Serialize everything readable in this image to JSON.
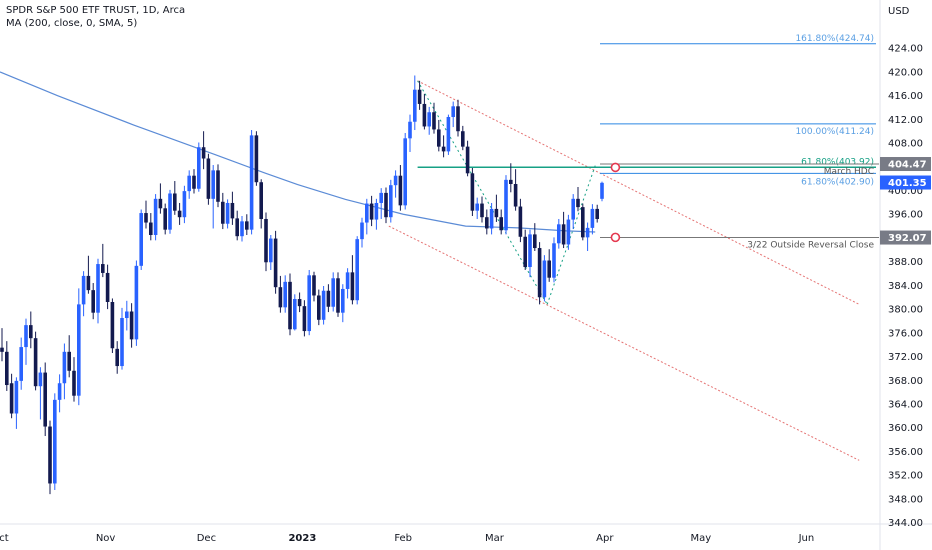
{
  "header": {
    "symbol_line": "SPDR S&P 500 ETF TRUST, 1D, Arca",
    "indicator_line": "MA (200, close, 0, SMA, 5)"
  },
  "colors": {
    "up": "#2962ff",
    "down": "#131a4f",
    "ma": "#5b8bd6",
    "fib": "#2b86e3",
    "fib_text": "#5a9fe3",
    "teal": "#16a085",
    "channel": "#e57373",
    "level": "#777777",
    "marker": "#e53950"
  },
  "chart_data": {
    "type": "candlestick",
    "currency_label": "USD",
    "y_axis": {
      "min": 344,
      "max": 428,
      "ticks": [
        424,
        420,
        416,
        412,
        408,
        404,
        400,
        396,
        392,
        388,
        384,
        380,
        376,
        372,
        368,
        364,
        360,
        356,
        352,
        348,
        344
      ],
      "tick_labels": [
        "424.00",
        "420.00",
        "416.00",
        "412.00",
        "408.00",
        "404.00",
        "400.00",
        "396.00",
        "392.00",
        "388.00",
        "384.00",
        "380.00",
        "376.00",
        "372.00",
        "368.00",
        "364.00",
        "360.00",
        "356.00",
        "352.00",
        "348.00",
        "344.00"
      ]
    },
    "x_axis": {
      "labels": [
        {
          "text": "Oct",
          "bar": 0,
          "bold": false
        },
        {
          "text": "Nov",
          "bar": 22,
          "bold": false
        },
        {
          "text": "Dec",
          "bar": 43,
          "bold": false
        },
        {
          "text": "2023",
          "bar": 63,
          "bold": true
        },
        {
          "text": "Feb",
          "bar": 84,
          "bold": false
        },
        {
          "text": "Mar",
          "bar": 103,
          "bold": false
        },
        {
          "text": "Apr",
          "bar": 126,
          "bold": false
        },
        {
          "text": "May",
          "bar": 146,
          "bold": false
        },
        {
          "text": "Jun",
          "bar": 168,
          "bold": false
        }
      ]
    },
    "bar_count": 180,
    "candles": [
      [
        373.5,
        376.8,
        371.2,
        372.8
      ],
      [
        372.8,
        374.6,
        366.2,
        367.2
      ],
      [
        367.5,
        369.1,
        361.6,
        362.4
      ],
      [
        362.4,
        368.5,
        359.8,
        367.9
      ],
      [
        367.9,
        375.2,
        366.4,
        373.6
      ],
      [
        373.6,
        378.4,
        370.6,
        377.3
      ],
      [
        377.3,
        379.6,
        373.4,
        375.1
      ],
      [
        375.1,
        376.2,
        366.3,
        367.0
      ],
      [
        367.0,
        370.2,
        361.4,
        369.3
      ],
      [
        369.3,
        371.0,
        358.6,
        360.2
      ],
      [
        360.2,
        361.2,
        348.8,
        350.6
      ],
      [
        350.6,
        365.8,
        349.5,
        364.7
      ],
      [
        364.7,
        369.0,
        362.6,
        367.5
      ],
      [
        367.5,
        374.2,
        364.8,
        372.8
      ],
      [
        372.8,
        375.6,
        368.5,
        369.6
      ],
      [
        369.6,
        371.9,
        364.4,
        365.4
      ],
      [
        365.4,
        383.5,
        363.8,
        380.8
      ],
      [
        380.8,
        386.4,
        378.8,
        385.6
      ],
      [
        385.6,
        389.0,
        382.6,
        383.2
      ],
      [
        383.2,
        384.4,
        378.3,
        379.4
      ],
      [
        379.4,
        388.5,
        377.6,
        387.6
      ],
      [
        387.6,
        391.0,
        385.4,
        386.1
      ],
      [
        386.1,
        387.5,
        380.0,
        381.2
      ],
      [
        381.2,
        381.8,
        372.6,
        373.4
      ],
      [
        373.3,
        374.6,
        369.1,
        370.4
      ],
      [
        370.4,
        380.2,
        369.8,
        378.5
      ],
      [
        378.5,
        381.4,
        376.4,
        379.6
      ],
      [
        379.6,
        381.0,
        373.5,
        374.9
      ],
      [
        374.9,
        388.2,
        373.8,
        387.3
      ],
      [
        387.3,
        396.8,
        386.6,
        396.2
      ],
      [
        396.2,
        398.3,
        393.6,
        394.6
      ],
      [
        394.6,
        396.2,
        391.6,
        392.5
      ],
      [
        392.5,
        399.4,
        391.6,
        398.6
      ],
      [
        398.6,
        401.2,
        396.1,
        397.0
      ],
      [
        397.0,
        397.8,
        392.6,
        393.4
      ],
      [
        393.4,
        400.1,
        392.7,
        399.5
      ],
      [
        399.5,
        401.6,
        395.9,
        396.6
      ],
      [
        396.6,
        397.9,
        394.2,
        395.5
      ],
      [
        395.5,
        400.8,
        394.5,
        399.9
      ],
      [
        399.9,
        403.4,
        398.6,
        402.5
      ],
      [
        402.5,
        403.6,
        399.5,
        400.3
      ],
      [
        400.3,
        408.1,
        399.8,
        407.3
      ],
      [
        407.3,
        410.0,
        403.6,
        405.4
      ],
      [
        405.4,
        406.2,
        397.6,
        398.6
      ],
      [
        398.6,
        404.3,
        393.6,
        403.4
      ],
      [
        403.4,
        404.4,
        397.2,
        398.1
      ],
      [
        398.1,
        399.6,
        393.5,
        394.4
      ],
      [
        394.4,
        398.5,
        393.6,
        397.9
      ],
      [
        397.9,
        399.8,
        394.2,
        395.3
      ],
      [
        395.3,
        396.6,
        391.6,
        392.3
      ],
      [
        392.3,
        395.7,
        391.4,
        394.8
      ],
      [
        394.8,
        396.0,
        392.5,
        393.4
      ],
      [
        393.4,
        410.2,
        392.6,
        409.3
      ],
      [
        409.3,
        410.0,
        400.8,
        401.4
      ],
      [
        401.4,
        401.9,
        393.6,
        395.2
      ],
      [
        395.2,
        396.3,
        386.4,
        387.9
      ],
      [
        387.9,
        392.5,
        386.6,
        391.9
      ],
      [
        391.9,
        393.2,
        382.6,
        383.7
      ],
      [
        383.7,
        385.6,
        379.4,
        380.3
      ],
      [
        380.3,
        385.7,
        379.4,
        384.6
      ],
      [
        384.6,
        386.0,
        375.6,
        376.6
      ],
      [
        376.6,
        382.5,
        376.4,
        381.7
      ],
      [
        381.7,
        382.8,
        379.5,
        380.5
      ],
      [
        380.5,
        381.5,
        375.4,
        376.3
      ],
      [
        376.3,
        386.6,
        375.6,
        385.7
      ],
      [
        385.7,
        386.3,
        381.3,
        382.3
      ],
      [
        382.3,
        383.3,
        377.3,
        378.2
      ],
      [
        378.2,
        383.9,
        377.4,
        383.1
      ],
      [
        383.1,
        384.2,
        379.5,
        380.4
      ],
      [
        380.4,
        386.2,
        379.6,
        385.2
      ],
      [
        385.2,
        386.2,
        378.7,
        379.4
      ],
      [
        379.4,
        384.2,
        377.8,
        383.4
      ],
      [
        383.4,
        386.9,
        381.8,
        386.2
      ],
      [
        386.2,
        389.1,
        380.8,
        381.5
      ],
      [
        381.5,
        392.3,
        380.8,
        391.8
      ],
      [
        391.8,
        395.4,
        390.4,
        394.6
      ],
      [
        394.6,
        398.6,
        392.6,
        397.8
      ],
      [
        397.8,
        399.1,
        394.0,
        395.1
      ],
      [
        395.1,
        398.6,
        393.4,
        397.9
      ],
      [
        397.9,
        400.4,
        395.2,
        399.6
      ],
      [
        399.6,
        400.5,
        394.5,
        395.5
      ],
      [
        395.5,
        401.8,
        394.6,
        400.9
      ],
      [
        400.9,
        403.4,
        398.8,
        402.5
      ],
      [
        402.5,
        404.3,
        396.6,
        397.5
      ],
      [
        397.5,
        409.7,
        396.8,
        408.8
      ],
      [
        408.8,
        412.8,
        406.5,
        411.6
      ],
      [
        411.6,
        419.4,
        410.2,
        417.0
      ],
      [
        417.0,
        418.5,
        413.6,
        414.6
      ],
      [
        414.6,
        416.3,
        410.3,
        410.8
      ],
      [
        410.8,
        414.1,
        409.4,
        413.2
      ],
      [
        413.2,
        414.8,
        409.6,
        410.3
      ],
      [
        410.3,
        411.9,
        406.6,
        407.4
      ],
      [
        407.4,
        409.3,
        405.6,
        406.6
      ],
      [
        406.6,
        412.8,
        406.0,
        412.4
      ],
      [
        412.4,
        415.0,
        410.7,
        414.2
      ],
      [
        414.2,
        415.3,
        409.1,
        410.0
      ],
      [
        410.0,
        410.9,
        406.8,
        407.4
      ],
      [
        407.4,
        408.4,
        402.4,
        402.9
      ],
      [
        402.9,
        403.8,
        395.7,
        396.6
      ],
      [
        396.6,
        398.8,
        395.2,
        397.8
      ],
      [
        397.8,
        399.0,
        394.6,
        395.5
      ],
      [
        395.5,
        396.8,
        392.6,
        393.6
      ],
      [
        393.6,
        397.9,
        392.6,
        396.9
      ],
      [
        396.9,
        399.3,
        394.7,
        395.5
      ],
      [
        395.5,
        396.8,
        392.6,
        393.3
      ],
      [
        393.3,
        402.6,
        392.6,
        401.8
      ],
      [
        401.8,
        404.6,
        399.7,
        401.1
      ],
      [
        401.1,
        403.6,
        396.6,
        397.3
      ],
      [
        397.3,
        398.6,
        391.3,
        392.2
      ],
      [
        392.2,
        393.4,
        386.6,
        387.1
      ],
      [
        387.1,
        393.4,
        385.4,
        392.6
      ],
      [
        392.6,
        394.5,
        389.8,
        390.3
      ],
      [
        390.3,
        391.3,
        380.8,
        382.0
      ],
      [
        382.0,
        389.1,
        381.3,
        388.2
      ],
      [
        388.2,
        390.1,
        384.6,
        385.3
      ],
      [
        385.3,
        392.1,
        384.5,
        391.1
      ],
      [
        391.1,
        395.2,
        390.2,
        394.3
      ],
      [
        394.3,
        396.4,
        390.3,
        390.9
      ],
      [
        390.9,
        395.9,
        390.0,
        395.1
      ],
      [
        395.1,
        399.4,
        393.5,
        398.6
      ],
      [
        398.6,
        400.6,
        396.5,
        397.2
      ],
      [
        397.2,
        397.8,
        391.6,
        392.1
      ],
      [
        392.1,
        394.6,
        389.8,
        393.7
      ],
      [
        393.7,
        397.7,
        392.6,
        396.9
      ],
      [
        396.9,
        397.6,
        394.6,
        395.2
      ],
      [
        398.6,
        401.5,
        398.2,
        401.3
      ]
    ],
    "moving_average": [
      {
        "bar": 0,
        "value": 420.0
      },
      {
        "bar": 12,
        "value": 416.0
      },
      {
        "bar": 28,
        "value": 411.0
      },
      {
        "bar": 45,
        "value": 406.0
      },
      {
        "bar": 55,
        "value": 403.0
      },
      {
        "bar": 62,
        "value": 401.0
      },
      {
        "bar": 72,
        "value": 398.5
      },
      {
        "bar": 84,
        "value": 396.0
      },
      {
        "bar": 97,
        "value": 394.0
      },
      {
        "bar": 108,
        "value": 393.7
      },
      {
        "bar": 118,
        "value": 393.2
      },
      {
        "bar": 124,
        "value": 393.0
      }
    ],
    "fib_levels": [
      {
        "label": "161.80%(424.74)",
        "value": 424.74,
        "from_bar": 125,
        "to_bar": 179,
        "style": "fib"
      },
      {
        "label": "100.00%(411.24)",
        "value": 411.24,
        "from_bar": 125,
        "to_bar": 179,
        "style": "fib"
      },
      {
        "label": "61.80%(403.92)",
        "value": 403.92,
        "from_bar": 87,
        "to_bar": 179,
        "style": "teal"
      },
      {
        "label": "61.80%(402.90)",
        "value": 402.9,
        "from_bar": 125,
        "to_bar": 179,
        "style": "fib"
      }
    ],
    "horizontal_levels": [
      {
        "label": "March HDC",
        "value": 404.47,
        "from_bar": 125,
        "to_bar": 179,
        "badge": "404.47",
        "badge_style": "gray"
      },
      {
        "label": "3/22 Outside Reversal Close",
        "value": 392.07,
        "from_bar": 125,
        "to_bar": 179,
        "badge": "392.07",
        "badge_style": "gray"
      }
    ],
    "last_price": {
      "value": 401.35,
      "label": "401.35"
    },
    "channel": {
      "upper": [
        {
          "bar": 87,
          "value": 418.5
        },
        {
          "bar": 179,
          "value": 380.8
        }
      ],
      "lower": [
        {
          "bar": 81,
          "value": 394.0
        },
        {
          "bar": 179,
          "value": 354.5
        }
      ]
    },
    "fib_trendlines": [
      [
        {
          "bar": 87,
          "value": 418.5
        },
        {
          "bar": 114,
          "value": 380.8
        }
      ],
      [
        {
          "bar": 114,
          "value": 380.8
        },
        {
          "bar": 124,
          "value": 404.2
        }
      ]
    ],
    "markers": [
      {
        "bar": 128,
        "value": 403.9
      },
      {
        "bar": 128,
        "value": 392.1
      }
    ]
  }
}
